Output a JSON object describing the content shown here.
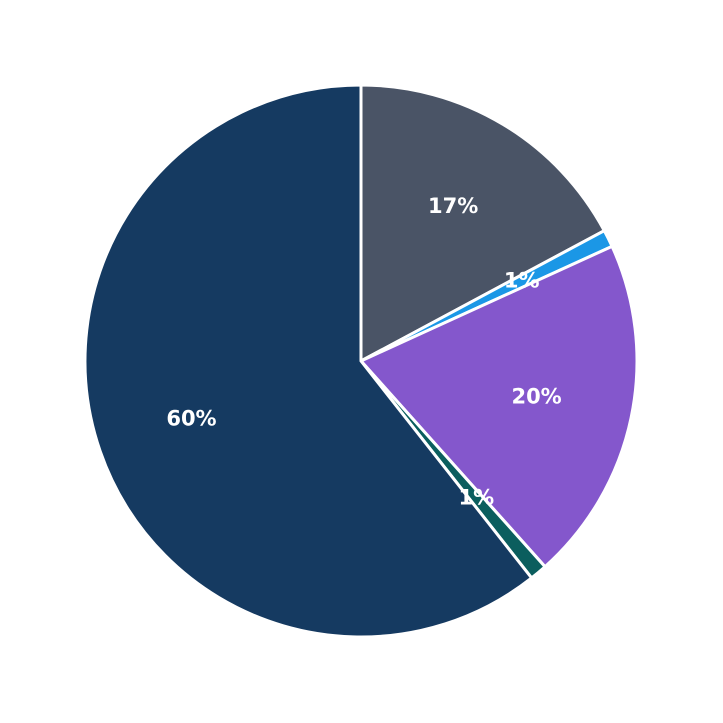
{
  "chart_data": {
    "type": "pie",
    "categories": [
      null,
      null,
      null,
      null,
      null
    ],
    "values": [
      17,
      1,
      20,
      1,
      60
    ],
    "value_labels": [
      "17%",
      "1%",
      "20%",
      "1%",
      "60%"
    ],
    "colors": [
      "#4a5466",
      "#1b97e6",
      "#8457cc",
      "#0b5e5e",
      "#153a61"
    ]
  }
}
